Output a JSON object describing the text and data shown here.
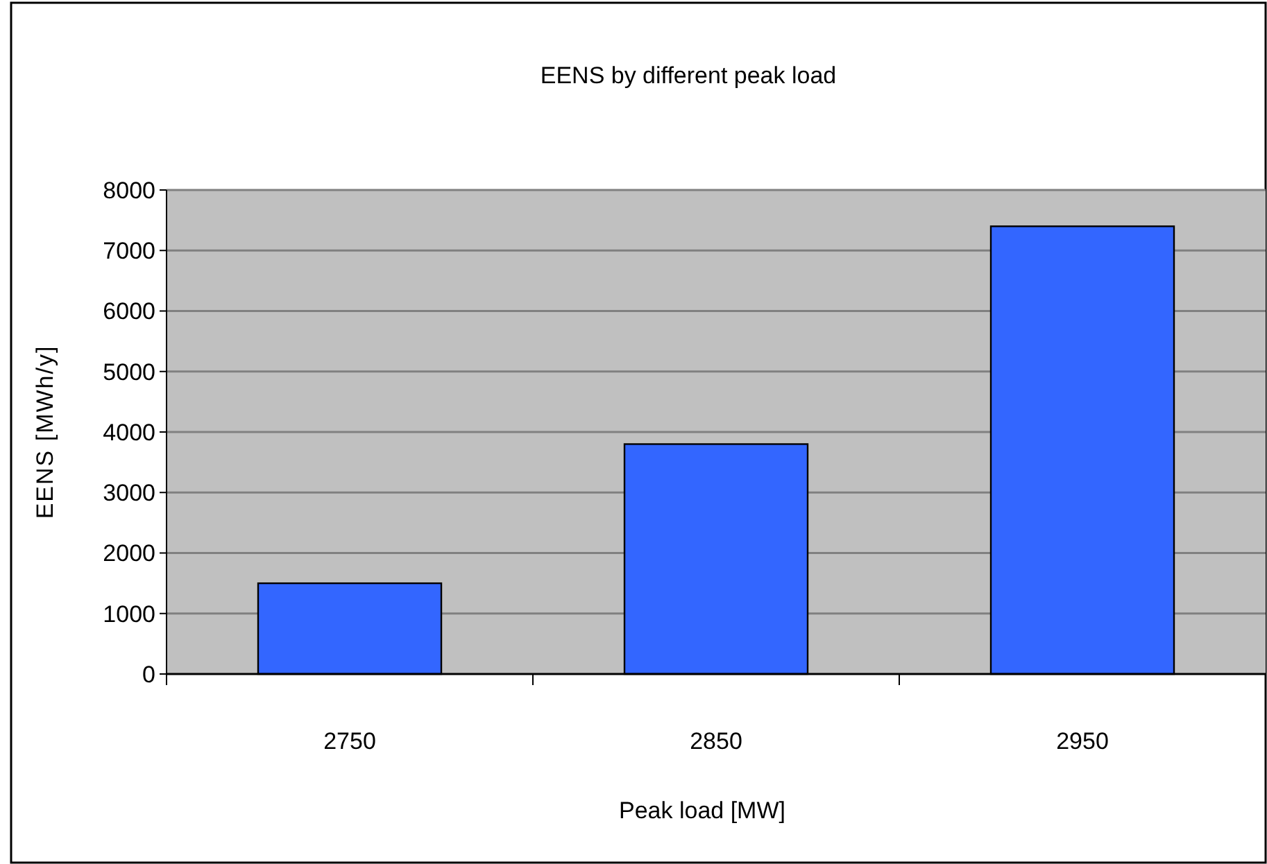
{
  "chart_data": {
    "type": "bar",
    "title": "EENS by different peak load",
    "xlabel": "Peak load [MW]",
    "ylabel": "EENS [MWh/y]",
    "categories": [
      "2750",
      "2850",
      "2950"
    ],
    "values": [
      1500,
      3800,
      7400
    ],
    "color": "#3366ff",
    "ylim": [
      0,
      8000
    ],
    "yticks": [
      0,
      1000,
      2000,
      3000,
      4000,
      5000,
      6000,
      7000,
      8000
    ],
    "grid": "y"
  }
}
